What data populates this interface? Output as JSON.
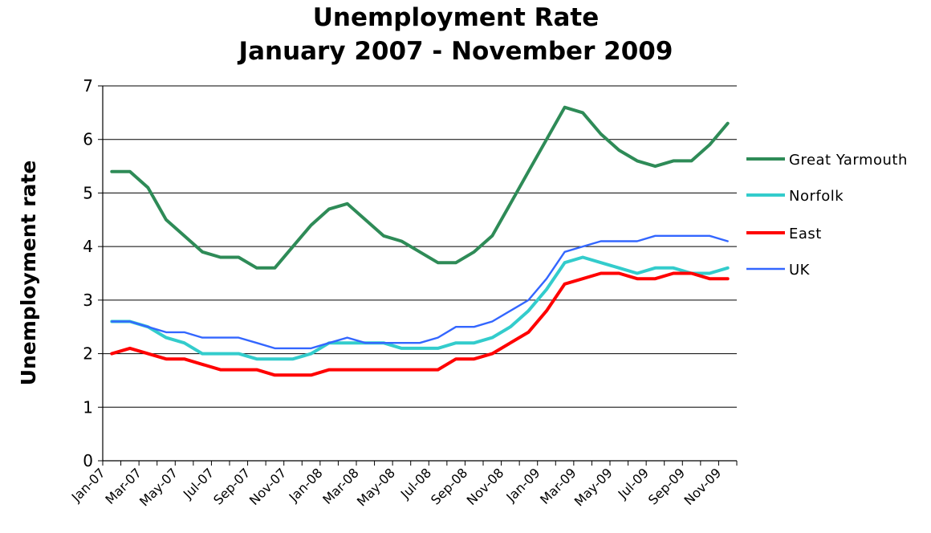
{
  "chart_data": {
    "type": "line",
    "title": [
      "Unemployment Rate",
      "January 2007 - November 2009"
    ],
    "ylabel": "Unemployment rate",
    "xlabel": "",
    "ylim": [
      0,
      7
    ],
    "yticks": [
      0,
      1,
      2,
      3,
      4,
      5,
      6,
      7
    ],
    "grid": true,
    "legend_position": "right",
    "x": [
      "Jan-07",
      "Feb-07",
      "Mar-07",
      "Apr-07",
      "May-07",
      "Jun-07",
      "Jul-07",
      "Aug-07",
      "Sep-07",
      "Oct-07",
      "Nov-07",
      "Dec-07",
      "Jan-08",
      "Feb-08",
      "Mar-08",
      "Apr-08",
      "May-08",
      "Jun-08",
      "Jul-08",
      "Aug-08",
      "Sep-08",
      "Oct-08",
      "Nov-08",
      "Dec-08",
      "Jan-09",
      "Feb-09",
      "Mar-09",
      "Apr-09",
      "May-09",
      "Jun-09",
      "Jul-09",
      "Aug-09",
      "Sep-09",
      "Oct-09",
      "Nov-09"
    ],
    "xtick_labels": [
      "Jan-07",
      "Mar-07",
      "May-07",
      "Jul-07",
      "Sep-07",
      "Nov-07",
      "Jan-08",
      "Mar-08",
      "May-08",
      "Jul-08",
      "Sep-08",
      "Nov-08",
      "Jan-09",
      "Mar-09",
      "May-09",
      "Jul-09",
      "Sep-09",
      "Nov-09"
    ],
    "series": [
      {
        "name": "Great Yarmouth",
        "color": "#2E8B57",
        "values": [
          5.4,
          5.4,
          5.1,
          4.5,
          4.2,
          3.9,
          3.8,
          3.8,
          3.6,
          3.6,
          4.0,
          4.4,
          4.7,
          4.8,
          4.5,
          4.2,
          4.1,
          3.9,
          3.7,
          3.7,
          3.9,
          4.2,
          4.8,
          5.4,
          6.0,
          6.6,
          6.5,
          6.1,
          5.8,
          5.6,
          5.5,
          5.6,
          5.6,
          5.9,
          6.3
        ]
      },
      {
        "name": "Norfolk",
        "color": "#33CCCC",
        "values": [
          2.6,
          2.6,
          2.5,
          2.3,
          2.2,
          2.0,
          2.0,
          2.0,
          1.9,
          1.9,
          1.9,
          2.0,
          2.2,
          2.2,
          2.2,
          2.2,
          2.1,
          2.1,
          2.1,
          2.2,
          2.2,
          2.3,
          2.5,
          2.8,
          3.2,
          3.7,
          3.8,
          3.7,
          3.6,
          3.5,
          3.6,
          3.6,
          3.5,
          3.5,
          3.6
        ]
      },
      {
        "name": "East",
        "color": "#FF0000",
        "values": [
          2.0,
          2.1,
          2.0,
          1.9,
          1.9,
          1.8,
          1.7,
          1.7,
          1.7,
          1.6,
          1.6,
          1.6,
          1.7,
          1.7,
          1.7,
          1.7,
          1.7,
          1.7,
          1.7,
          1.9,
          1.9,
          2.0,
          2.2,
          2.4,
          2.8,
          3.3,
          3.4,
          3.5,
          3.5,
          3.4,
          3.4,
          3.5,
          3.5,
          3.4,
          3.4
        ]
      },
      {
        "name": "UK",
        "color": "#3366FF",
        "values": [
          2.6,
          2.6,
          2.5,
          2.4,
          2.4,
          2.3,
          2.3,
          2.3,
          2.2,
          2.1,
          2.1,
          2.1,
          2.2,
          2.3,
          2.2,
          2.2,
          2.2,
          2.2,
          2.3,
          2.5,
          2.5,
          2.6,
          2.8,
          3.0,
          3.4,
          3.9,
          4.0,
          4.1,
          4.1,
          4.1,
          4.2,
          4.2,
          4.2,
          4.2,
          4.1
        ]
      }
    ]
  }
}
